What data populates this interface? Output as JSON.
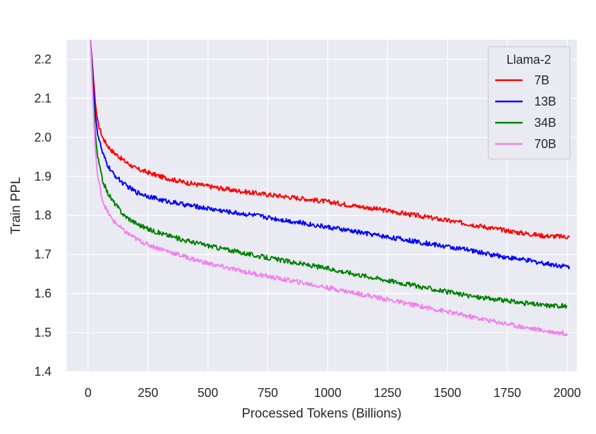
{
  "chart_data": {
    "type": "line",
    "title": "",
    "xlabel": "Processed Tokens (Billions)",
    "ylabel": "Train PPL",
    "xlim": [
      -90,
      2040
    ],
    "ylim": [
      1.4,
      2.25
    ],
    "xticks": [
      0,
      250,
      500,
      750,
      1000,
      1250,
      1500,
      1750,
      2000
    ],
    "xtick_labels": [
      "0",
      "250",
      "500",
      "750",
      "1000",
      "1250",
      "1500",
      "1750",
      "2000"
    ],
    "yticks": [
      1.4,
      1.5,
      1.6,
      1.7,
      1.8,
      1.9,
      2.0,
      2.1,
      2.2
    ],
    "ytick_labels": [
      "1.4",
      "1.5",
      "1.6",
      "1.7",
      "1.8",
      "1.9",
      "2.0",
      "2.1",
      "2.2"
    ],
    "grid": true,
    "legend": {
      "title": "Llama-2",
      "placement": "top-right"
    },
    "series": [
      {
        "name": "7B",
        "color": "#ff0000",
        "x": [
          10,
          20,
          30,
          40,
          60,
          80,
          100,
          150,
          200,
          250,
          300,
          400,
          500,
          600,
          700,
          800,
          900,
          1000,
          1100,
          1200,
          1300,
          1400,
          1500,
          1600,
          1700,
          1800,
          1900,
          2010
        ],
        "y": [
          2.25,
          2.17,
          2.09,
          2.04,
          2.0,
          1.98,
          1.965,
          1.94,
          1.92,
          1.91,
          1.9,
          1.885,
          1.875,
          1.865,
          1.857,
          1.85,
          1.843,
          1.835,
          1.826,
          1.817,
          1.807,
          1.797,
          1.787,
          1.777,
          1.766,
          1.756,
          1.748,
          1.745
        ]
      },
      {
        "name": "13B",
        "color": "#0000ff",
        "x": [
          10,
          20,
          30,
          40,
          60,
          80,
          100,
          150,
          200,
          250,
          300,
          400,
          500,
          600,
          700,
          800,
          900,
          1000,
          1100,
          1200,
          1300,
          1400,
          1500,
          1600,
          1700,
          1800,
          1900,
          2010
        ],
        "y": [
          2.25,
          2.15,
          2.06,
          2.01,
          1.96,
          1.93,
          1.91,
          1.88,
          1.86,
          1.85,
          1.84,
          1.828,
          1.818,
          1.808,
          1.8,
          1.79,
          1.78,
          1.77,
          1.76,
          1.75,
          1.74,
          1.73,
          1.72,
          1.71,
          1.698,
          1.688,
          1.678,
          1.668
        ]
      },
      {
        "name": "34B",
        "color": "#008000",
        "x": [
          10,
          20,
          30,
          40,
          60,
          80,
          100,
          150,
          200,
          250,
          300,
          400,
          500,
          600,
          700,
          800,
          900,
          1000,
          1100,
          1200,
          1300,
          1400,
          1500,
          1600,
          1700,
          1800,
          1900,
          2000
        ],
        "y": [
          2.25,
          2.12,
          2.01,
          1.95,
          1.89,
          1.86,
          1.84,
          1.8,
          1.78,
          1.765,
          1.755,
          1.737,
          1.723,
          1.71,
          1.697,
          1.686,
          1.675,
          1.664,
          1.652,
          1.64,
          1.628,
          1.616,
          1.604,
          1.593,
          1.585,
          1.577,
          1.57,
          1.568
        ]
      },
      {
        "name": "70B",
        "color": "#ee82ee",
        "x": [
          10,
          20,
          30,
          40,
          60,
          80,
          100,
          150,
          200,
          250,
          300,
          400,
          500,
          600,
          700,
          800,
          900,
          1000,
          1100,
          1200,
          1300,
          1400,
          1500,
          1600,
          1700,
          1800,
          1900,
          2000
        ],
        "y": [
          2.25,
          2.1,
          1.97,
          1.9,
          1.84,
          1.81,
          1.79,
          1.76,
          1.74,
          1.725,
          1.715,
          1.695,
          1.677,
          1.663,
          1.65,
          1.638,
          1.627,
          1.615,
          1.603,
          1.591,
          1.578,
          1.566,
          1.553,
          1.54,
          1.528,
          1.516,
          1.505,
          1.497
        ]
      }
    ]
  }
}
